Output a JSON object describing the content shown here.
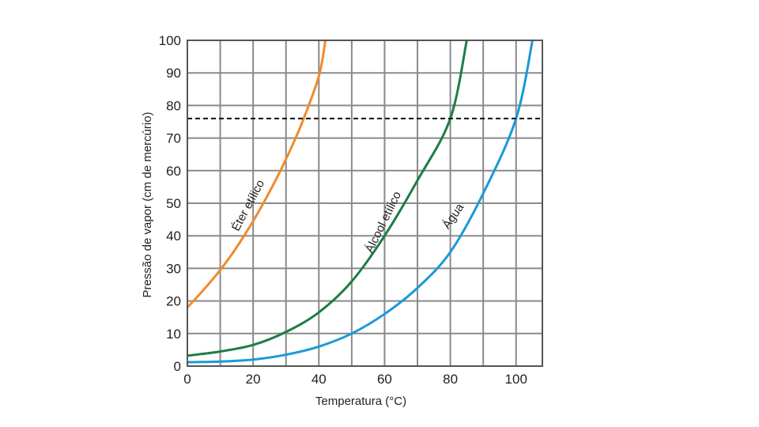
{
  "chart_data": {
    "type": "line",
    "title": "",
    "xlabel": "Temperatura  (°C)",
    "ylabel": "Pressão de vapor (cm de mercúrio)",
    "xlim": [
      0,
      108
    ],
    "ylim": [
      0,
      100
    ],
    "x_ticks": [
      "0",
      "20",
      "40",
      "60",
      "80",
      "100"
    ],
    "y_ticks": [
      "0",
      "10",
      "20",
      "30",
      "40",
      "50",
      "60",
      "70",
      "80",
      "90",
      "100"
    ],
    "grid": true,
    "reference_line": {
      "y": 76,
      "style": "dashed"
    },
    "series": [
      {
        "name": "Éter etílico",
        "color": "#f08a2c",
        "x": [
          0,
          5,
          10,
          15,
          20,
          25,
          30,
          35,
          40,
          42
        ],
        "y": [
          18,
          23.5,
          29.5,
          36.5,
          44.5,
          53.5,
          63.5,
          75,
          89,
          100
        ]
      },
      {
        "name": "Álcool etílico",
        "color": "#1e7d45",
        "x": [
          0,
          10,
          20,
          30,
          40,
          50,
          60,
          70,
          80,
          85
        ],
        "y": [
          3.2,
          4.5,
          6.5,
          10.5,
          16.5,
          26,
          40,
          57,
          76,
          100
        ]
      },
      {
        "name": "Água",
        "color": "#1a9ad6",
        "x": [
          0,
          10,
          20,
          30,
          40,
          50,
          60,
          70,
          80,
          90,
          100,
          105
        ],
        "y": [
          1.2,
          1.4,
          2,
          3.5,
          6,
          10,
          16,
          24,
          35,
          53,
          76,
          100
        ]
      }
    ]
  }
}
